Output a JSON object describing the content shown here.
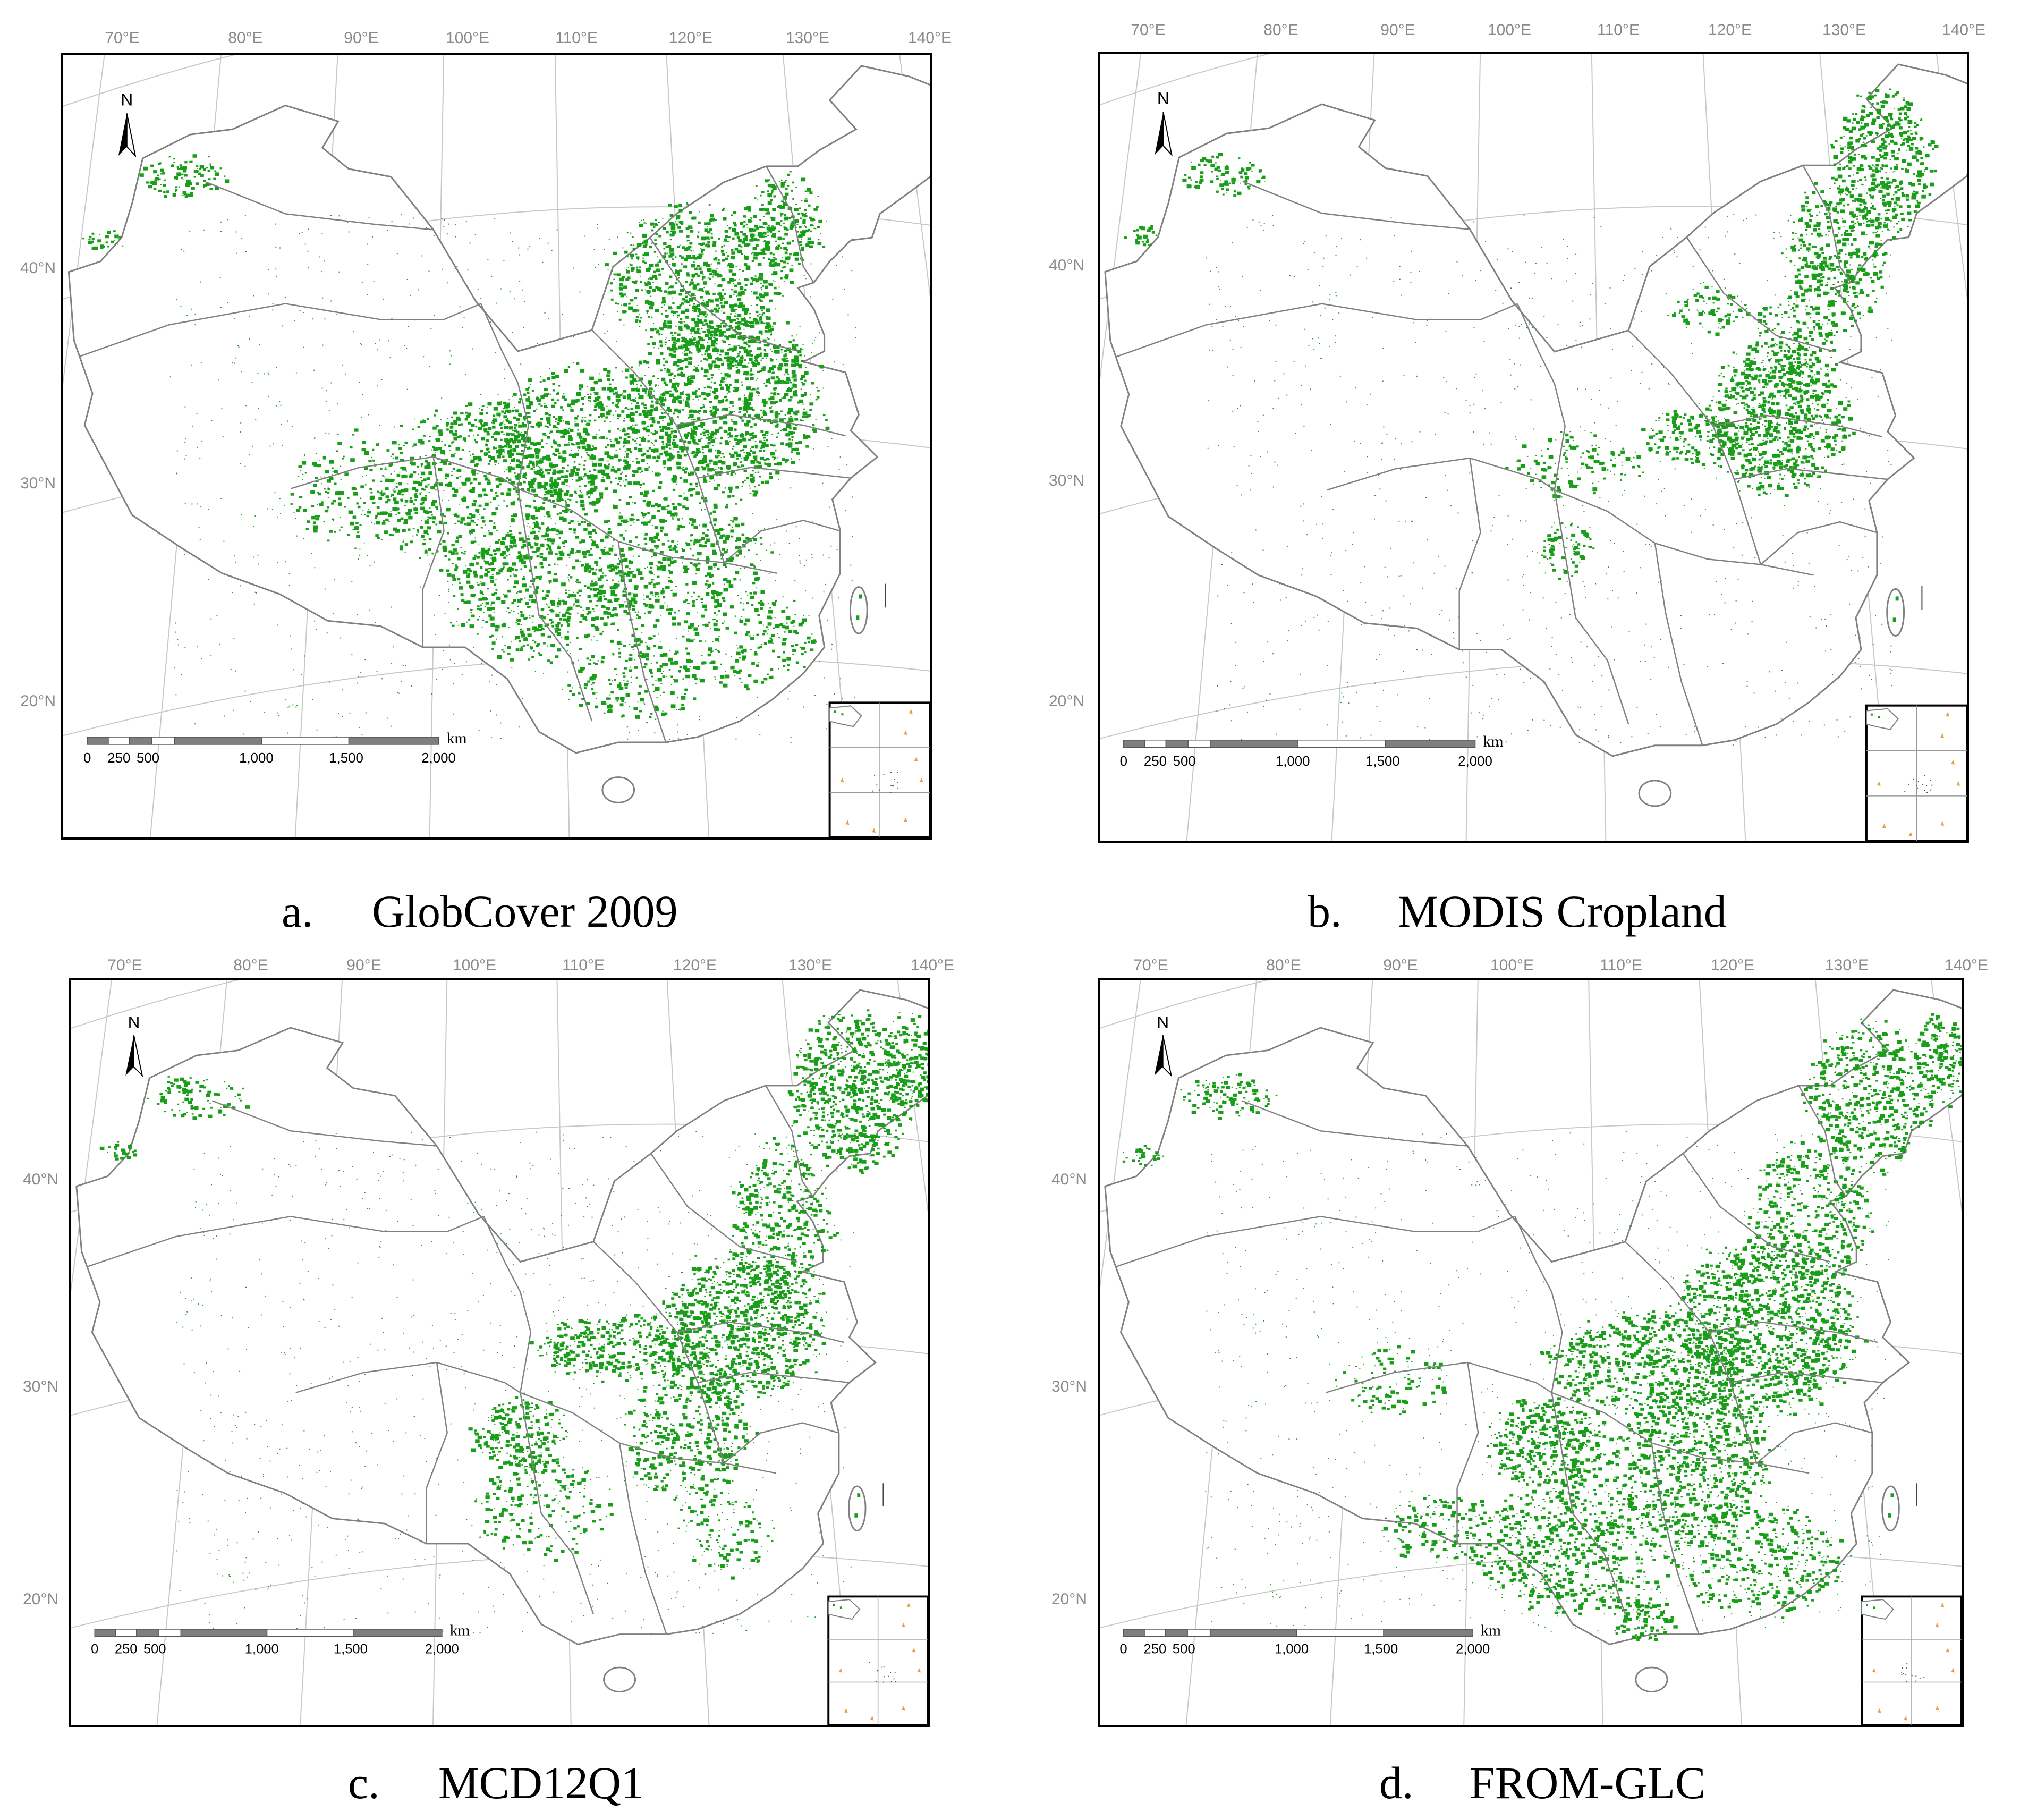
{
  "axes": {
    "longitude_labels": [
      "70°E",
      "80°E",
      "90°E",
      "100°E",
      "110°E",
      "120°E",
      "130°E",
      "140°E"
    ],
    "latitude_labels": [
      "40°N",
      "30°N",
      "20°N"
    ]
  },
  "scale_bar": {
    "unit": "km",
    "labels": [
      "0",
      "250",
      "500",
      "1,000",
      "1,500",
      "2,000"
    ]
  },
  "north_arrow": {
    "label": "N"
  },
  "colors": {
    "cropland": "#1a9e1a",
    "boundary": "#808080",
    "graticule": "#c8c8c8",
    "scale_dark": "#7f7f7f",
    "inset_islands": "#e6a23c"
  },
  "panels": [
    {
      "letter": "a.",
      "title": "GlobCover 2009"
    },
    {
      "letter": "b.",
      "title": "MODIS Cropland"
    },
    {
      "letter": "c.",
      "title": "MCD12Q1"
    },
    {
      "letter": "d.",
      "title": "FROM-GLC"
    }
  ]
}
